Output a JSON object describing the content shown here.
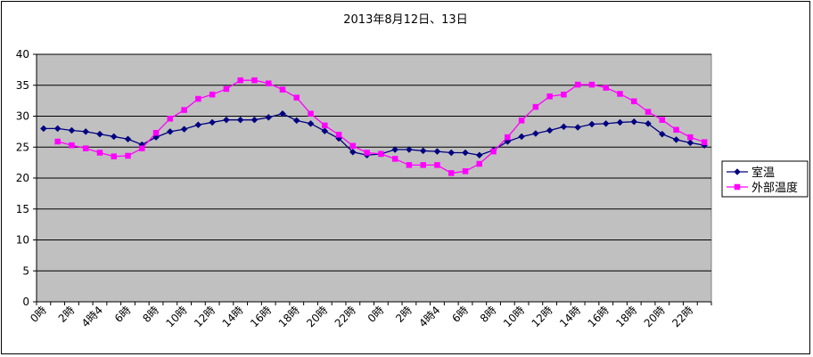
{
  "chart_data": {
    "type": "line",
    "title": "2013年8月12日、13日",
    "xlabel": "",
    "ylabel": "",
    "ylim": [
      0,
      40
    ],
    "yticks": [
      0,
      5,
      10,
      15,
      20,
      25,
      30,
      35,
      40
    ],
    "grid": true,
    "legend_position": "right",
    "x_tick_labels": [
      "0時",
      "2時",
      "4時4",
      "6時",
      "8時",
      "10時",
      "12時",
      "14時",
      "16時",
      "18時",
      "20時",
      "22時",
      "0時",
      "2時",
      "4時4",
      "6時",
      "8時",
      "10時",
      "12時",
      "14時",
      "16時",
      "18時",
      "20時",
      "22時"
    ],
    "series": [
      {
        "name": "室温",
        "color": "#000080",
        "marker": "diamond",
        "values": [
          28.0,
          28.0,
          27.7,
          27.5,
          27.1,
          26.7,
          26.3,
          25.4,
          26.6,
          27.5,
          27.9,
          28.6,
          29.0,
          29.4,
          29.4,
          29.4,
          29.8,
          30.4,
          29.3,
          28.8,
          27.6,
          26.4,
          24.2,
          23.7,
          23.9,
          24.6,
          24.6,
          24.4,
          24.3,
          24.1,
          24.1,
          23.7,
          24.5,
          25.9,
          26.7,
          27.2,
          27.7,
          28.3,
          28.2,
          28.7,
          28.8,
          29.0,
          29.1,
          28.8,
          27.1,
          26.2,
          25.7,
          25.3
        ]
      },
      {
        "name": "外部温度",
        "color": "#ff00ff",
        "marker": "square",
        "values": [
          null,
          25.9,
          25.3,
          24.8,
          24.1,
          23.5,
          23.6,
          24.8,
          27.3,
          29.6,
          31.0,
          32.8,
          33.5,
          34.4,
          35.8,
          35.8,
          35.3,
          34.3,
          33.0,
          30.4,
          28.5,
          27.0,
          25.2,
          24.1,
          23.9,
          23.1,
          22.1,
          22.1,
          22.1,
          20.8,
          21.1,
          22.3,
          24.3,
          26.6,
          29.3,
          31.5,
          33.2,
          33.5,
          35.1,
          35.1,
          34.6,
          33.6,
          32.4,
          30.7,
          29.4,
          27.8,
          26.6,
          25.8
        ]
      }
    ]
  }
}
